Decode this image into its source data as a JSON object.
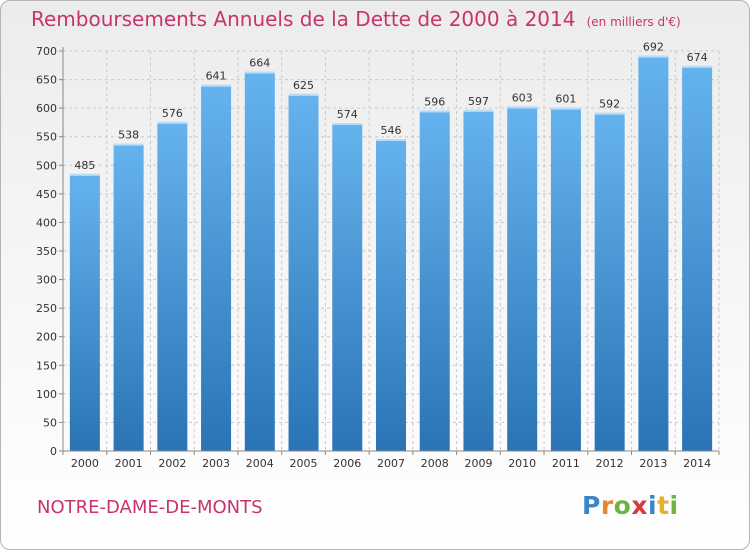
{
  "title": "Remboursements Annuels de la Dette de 2000 à 2014",
  "subtitle": "(en milliers d'€)",
  "place": "NOTRE-DAME-DE-MONTS",
  "logo": {
    "text": "Proxiti",
    "letters": [
      {
        "ch": "P",
        "color": "#3a86c8"
      },
      {
        "ch": "r",
        "color": "#e8862b"
      },
      {
        "ch": "o",
        "color": "#6fb43f"
      },
      {
        "ch": "x",
        "color": "#d83a3a"
      },
      {
        "ch": "i",
        "color": "#3a86c8"
      },
      {
        "ch": "t",
        "color": "#e8b02b"
      },
      {
        "ch": "i",
        "color": "#6fb43f"
      }
    ]
  },
  "colors": {
    "bar_top": "#65b3ee",
    "bar_bottom": "#2a74b5",
    "grid": "#c9c9c9",
    "axis_text": "#333333",
    "accent": "#c8336e"
  },
  "chart_data": {
    "type": "bar",
    "categories": [
      "2000",
      "2001",
      "2002",
      "2003",
      "2004",
      "2005",
      "2006",
      "2007",
      "2008",
      "2009",
      "2010",
      "2011",
      "2012",
      "2013",
      "2014"
    ],
    "values": [
      485,
      538,
      576,
      641,
      664,
      625,
      574,
      546,
      596,
      597,
      603,
      601,
      592,
      692,
      674
    ],
    "ylim": [
      0,
      700
    ],
    "ytick_step": 50,
    "grid": true,
    "data_labels": true
  }
}
